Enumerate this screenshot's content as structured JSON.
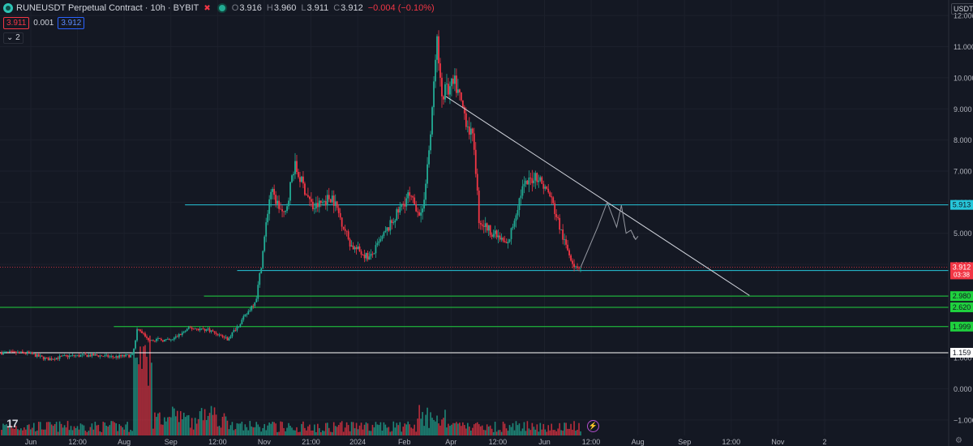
{
  "header": {
    "title": "RUNEUSDT Perpetual Contract · 10h · BYBIT",
    "open_label": "O",
    "open": "3.916",
    "high_label": "H",
    "high": "3.960",
    "low_label": "L",
    "low": "3.911",
    "close_label": "C",
    "close": "3.912",
    "change": "−0.004 (−0.10%)"
  },
  "quote": {
    "sell": "3.911",
    "spread": "0.001",
    "buy": "3.912"
  },
  "indicator_toggle": "2",
  "currency_label": "USDT",
  "colors": {
    "background": "#141823",
    "up": "#22ab94",
    "down": "#f23645",
    "support": "#1fd13e",
    "resistance": "#26c6da",
    "last_price": "#f23645"
  },
  "chart_data": {
    "type": "candlestick",
    "x_tick_labels": [
      "Jun",
      "12:00",
      "Aug",
      "Sep",
      "12:00",
      "Nov",
      "21:00",
      "2024",
      "Feb",
      "Apr",
      "12:00",
      "Jun",
      "12:00",
      "Aug",
      "Sep",
      "12:00",
      "Nov",
      "2"
    ],
    "y_ticks": [
      "12.000",
      "11.000",
      "10.000",
      "9.000",
      "8.000",
      "7.000",
      "6.000",
      "5.000",
      "4.000",
      "3.000",
      "2.000",
      "1.000",
      "0.000",
      "−1.000"
    ],
    "y_range": [
      -1.5,
      12.5
    ],
    "price_path": [
      [
        0,
        1.16
      ],
      [
        0.03,
        1.15
      ],
      [
        0.05,
        0.95
      ],
      [
        0.07,
        1.05
      ],
      [
        0.1,
        1.08
      ],
      [
        0.12,
        1.02
      ],
      [
        0.14,
        1.08
      ],
      [
        0.145,
        2.0
      ],
      [
        0.155,
        1.6
      ],
      [
        0.18,
        1.55
      ],
      [
        0.2,
        1.95
      ],
      [
        0.22,
        1.9
      ],
      [
        0.24,
        1.6
      ],
      [
        0.26,
        2.4
      ],
      [
        0.27,
        2.9
      ],
      [
        0.275,
        3.9
      ],
      [
        0.285,
        6.4
      ],
      [
        0.3,
        5.5
      ],
      [
        0.31,
        7.2
      ],
      [
        0.33,
        5.8
      ],
      [
        0.35,
        6.2
      ],
      [
        0.37,
        4.6
      ],
      [
        0.39,
        4.2
      ],
      [
        0.41,
        5.2
      ],
      [
        0.43,
        6.2
      ],
      [
        0.445,
        5.6
      ],
      [
        0.455,
        8.5
      ],
      [
        0.46,
        11.4
      ],
      [
        0.465,
        9.4
      ],
      [
        0.48,
        9.8
      ],
      [
        0.5,
        7.8
      ],
      [
        0.505,
        5.4
      ],
      [
        0.52,
        5.0
      ],
      [
        0.535,
        4.6
      ],
      [
        0.55,
        6.4
      ],
      [
        0.565,
        6.9
      ],
      [
        0.58,
        6.2
      ],
      [
        0.595,
        4.7
      ],
      [
        0.605,
        4.0
      ],
      [
        0.612,
        3.9
      ]
    ],
    "projection_path": [
      [
        0.612,
        3.9
      ],
      [
        0.63,
        5.2
      ],
      [
        0.64,
        6.0
      ],
      [
        0.65,
        5.2
      ],
      [
        0.655,
        5.9
      ],
      [
        0.66,
        5.0
      ],
      [
        0.665,
        5.1
      ],
      [
        0.67,
        4.8
      ]
    ],
    "trendline": {
      "from": {
        "x": 0.47,
        "price": 9.4
      },
      "to": {
        "x": 0.79,
        "price": 3.0
      }
    },
    "horizontal_levels": [
      {
        "price": 5.913,
        "label": "5.913",
        "color": "#26c6da",
        "start": 0.195
      },
      {
        "price": 3.803,
        "label": "3.803",
        "color": "#26c6da",
        "start": 0.25
      },
      {
        "price": 2.98,
        "label": "2.980",
        "color": "#1fd13e",
        "start": 0.215
      },
      {
        "price": 2.62,
        "label": "2.620",
        "color": "#1fd13e",
        "start": 0.0
      },
      {
        "price": 1.999,
        "label": "1.999",
        "color": "#1fd13e",
        "start": 0.12
      },
      {
        "price": 1.159,
        "label": "1.159",
        "color": "#ffffff",
        "start": 0.0
      }
    ],
    "last_price": {
      "price": 3.912,
      "label": "3.912",
      "countdown": "03:38"
    }
  }
}
